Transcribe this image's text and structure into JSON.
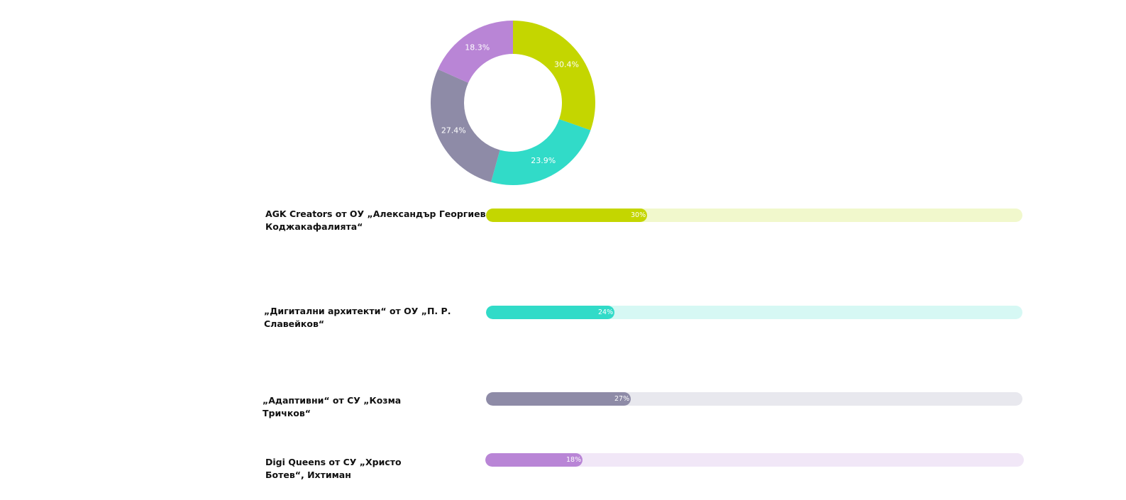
{
  "chart_data": [
    {
      "type": "pie",
      "categories": [
        "AGK Creators от ОУ „Александър Георгиев-Коджакафалията“",
        "„Дигитални архитекти“ от ОУ „П. Р. Славейков“",
        "„Адаптивни“ от СУ „Козма Тричков“",
        "Digi Queens от СУ „Христо Ботев“, Ихтиман"
      ],
      "values": [
        30.4,
        23.9,
        27.4,
        18.3
      ],
      "labels": [
        "30.4%",
        "23.9%",
        "27.4%",
        "18.3%"
      ],
      "colors": [
        "#c4d600",
        "#31dbc8",
        "#8e8ba7",
        "#b985d6"
      ]
    },
    {
      "type": "bar",
      "categories": [
        "AGK Creators от ОУ „Александър Георгиев-Коджакафалията“",
        "„Дигитални архитекти“ от ОУ „П. Р. Славейков“",
        "„Адаптивни“ от СУ „Козма Тричков“",
        "Digi Queens от СУ „Христо Ботев“, Ихтиман"
      ],
      "values": [
        30,
        24,
        27,
        18
      ],
      "labels": [
        "30%",
        "24%",
        "27%",
        "18%"
      ],
      "colors": [
        "#c4d600",
        "#31dbc8",
        "#8e8ba7",
        "#b985d6"
      ],
      "track_colors": [
        "#f1f8cc",
        "#d6f8f4",
        "#e8e8ee",
        "#f1e7f7"
      ],
      "xlim": [
        0,
        100
      ]
    }
  ],
  "rows": [
    {
      "label_line1": "AGK Creators от ОУ „Александър Георгиев-",
      "label_line2": "Коджакафалията“"
    },
    {
      "label_line1": "„Дигитални архитекти“ от ОУ „П. Р.",
      "label_line2": "Славейков“"
    },
    {
      "label_line1": "„Адаптивни“ от СУ „Козма",
      "label_line2": "Тричков“"
    },
    {
      "label_line1": "Digi Queens от СУ „Христо",
      "label_line2": "Ботев“, Ихтиман"
    }
  ]
}
